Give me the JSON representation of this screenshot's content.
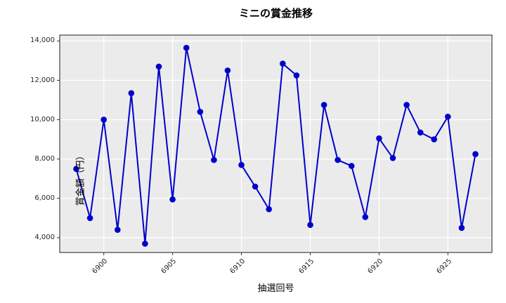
{
  "title": "ミニの賞金推移",
  "chart_data": {
    "type": "line",
    "title": "ミニの賞金推移",
    "xlabel": "抽選回号",
    "ylabel": "賞金額（円）",
    "x": [
      6898,
      6899,
      6900,
      6901,
      6902,
      6903,
      6904,
      6905,
      6906,
      6907,
      6908,
      6909,
      6910,
      6911,
      6912,
      6913,
      6914,
      6915,
      6916,
      6917,
      6918,
      6919,
      6920,
      6921,
      6922,
      6923,
      6924,
      6925,
      6926,
      6927
    ],
    "values": [
      7500,
      5000,
      10000,
      4400,
      11350,
      3700,
      12700,
      5950,
      13650,
      10400,
      7950,
      12500,
      7700,
      6600,
      5450,
      12850,
      12250,
      4650,
      10750,
      7950,
      7650,
      5050,
      9050,
      8050,
      10750,
      9350,
      9000,
      10150,
      4500,
      8250
    ],
    "xlim": [
      6896.8,
      6928.2
    ],
    "ylim": [
      3250,
      14300
    ],
    "x_ticks": [
      6900,
      6905,
      6910,
      6915,
      6920,
      6925
    ],
    "x_tick_labels": [
      "6900",
      "6905",
      "6910",
      "6915",
      "6920",
      "6925"
    ],
    "y_ticks": [
      4000,
      6000,
      8000,
      10000,
      12000,
      14000
    ],
    "y_tick_labels": [
      "4,000",
      "6,000",
      "8,000",
      "10,000",
      "12,000",
      "14,000"
    ],
    "grid": true,
    "legend": false,
    "marker": "circle",
    "colors": {
      "line": "#0000cd",
      "marker": "#0000cd",
      "plot_bg": "#ebebeb",
      "grid": "#ffffff",
      "spine": "#1f1f1f",
      "tick": "#333333"
    }
  }
}
